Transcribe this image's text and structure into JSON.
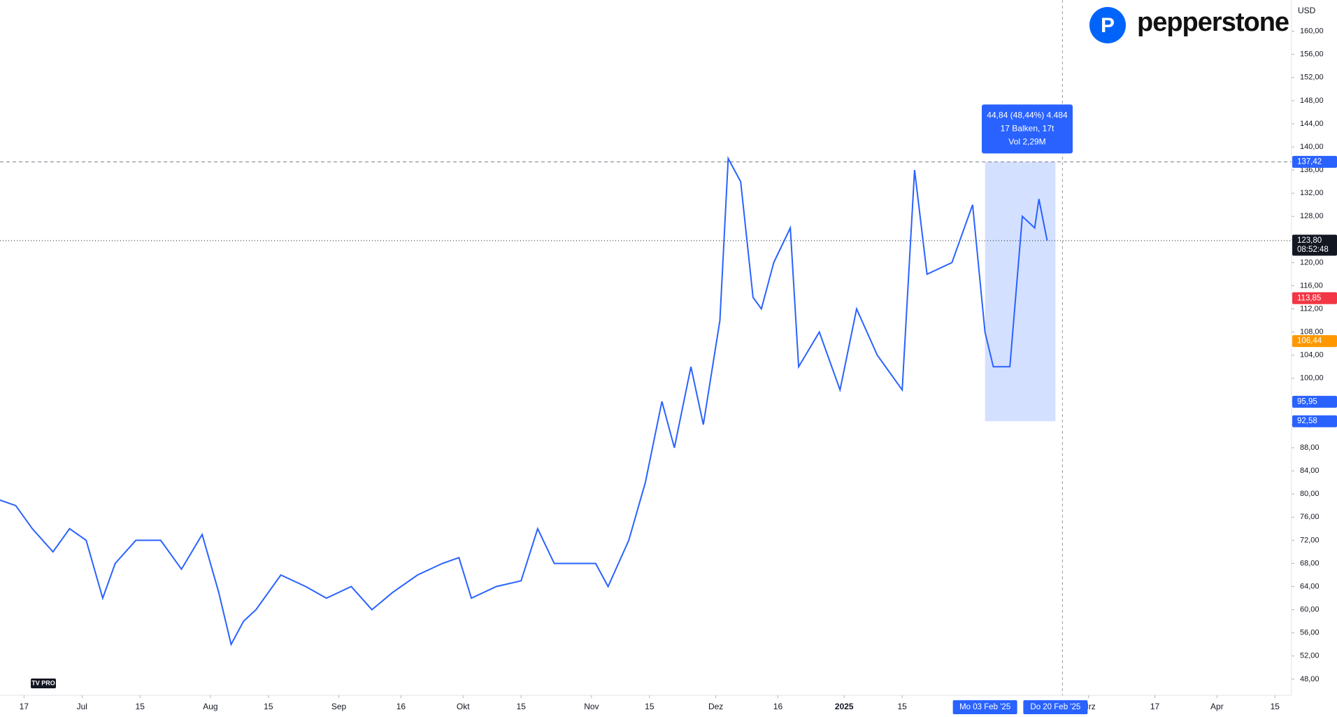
{
  "brand": "pepperstone",
  "logo": "TV PRO",
  "chart_data": {
    "type": "line",
    "currency": "USD",
    "color": "#2962ff",
    "x": [
      -6,
      -2,
      2,
      7,
      11,
      15,
      19,
      22,
      27,
      33,
      38,
      43,
      47,
      50,
      53,
      56,
      62,
      68,
      73,
      79,
      84,
      89,
      95,
      101,
      105,
      108,
      114,
      120,
      124,
      128,
      134,
      138,
      141,
      146,
      150,
      154,
      157,
      161,
      164,
      168,
      170,
      173,
      176,
      178,
      181,
      185,
      187,
      192,
      197,
      201,
      206,
      212,
      215,
      218,
      224,
      229,
      232,
      234,
      238,
      241,
      244,
      245,
      247
    ],
    "values": [
      79,
      78,
      74,
      70,
      74,
      72,
      62,
      68,
      72,
      72,
      67,
      73,
      63,
      54,
      58,
      60,
      66,
      64,
      62,
      64,
      60,
      63,
      66,
      68,
      69,
      62,
      64,
      65,
      74,
      68,
      68,
      68,
      64,
      72,
      82,
      96,
      88,
      102,
      92,
      110,
      138,
      134,
      114,
      112,
      120,
      126,
      102,
      108,
      98,
      112,
      104,
      98,
      136,
      118,
      120,
      130,
      108,
      102,
      102,
      128,
      126,
      131,
      123.8
    ],
    "xlim": [
      -5.8,
      306
    ],
    "ylim": [
      45.2,
      165.4
    ],
    "xticks": [
      {
        "value": 0,
        "label": "17"
      },
      {
        "value": 14,
        "label": "Jul"
      },
      {
        "value": 28,
        "label": "15"
      },
      {
        "value": 45,
        "label": "Aug"
      },
      {
        "value": 59,
        "label": "15"
      },
      {
        "value": 76,
        "label": "Sep"
      },
      {
        "value": 91,
        "label": "16"
      },
      {
        "value": 106,
        "label": "Okt"
      },
      {
        "value": 120,
        "label": "15"
      },
      {
        "value": 137,
        "label": "Nov"
      },
      {
        "value": 151,
        "label": "15"
      },
      {
        "value": 167,
        "label": "Dez"
      },
      {
        "value": 182,
        "label": "16"
      },
      {
        "value": 198,
        "label": "2025"
      },
      {
        "value": 212,
        "label": "15"
      },
      {
        "value": 257,
        "label": "Mrz"
      },
      {
        "value": 273,
        "label": "17"
      },
      {
        "value": 288,
        "label": "Apr"
      },
      {
        "value": 302,
        "label": "15"
      }
    ],
    "yticks": [
      {
        "value": 48,
        "label": "48,00"
      },
      {
        "value": 52,
        "label": "52,00"
      },
      {
        "value": 56,
        "label": "56,00"
      },
      {
        "value": 60,
        "label": "60,00"
      },
      {
        "value": 64,
        "label": "64,00"
      },
      {
        "value": 68,
        "label": "68,00"
      },
      {
        "value": 72,
        "label": "72,00"
      },
      {
        "value": 76,
        "label": "76,00"
      },
      {
        "value": 80,
        "label": "80,00"
      },
      {
        "value": 84,
        "label": "84,00"
      },
      {
        "value": 88,
        "label": "88,00"
      },
      {
        "value": 92,
        "label": "92,00"
      },
      {
        "value": 96,
        "label": "96,00"
      },
      {
        "value": 100,
        "label": "100,00"
      },
      {
        "value": 104,
        "label": "104,00"
      },
      {
        "value": 108,
        "label": "108,00"
      },
      {
        "value": 112,
        "label": "112,00"
      },
      {
        "value": 116,
        "label": "116,00"
      },
      {
        "value": 120,
        "label": "120,00"
      },
      {
        "value": 124,
        "label": "124,00"
      },
      {
        "value": 128,
        "label": "128,00"
      },
      {
        "value": 132,
        "label": "132,00"
      },
      {
        "value": 136,
        "label": "136,00"
      },
      {
        "value": 140,
        "label": "140,00"
      },
      {
        "value": 144,
        "label": "144,00"
      },
      {
        "value": 148,
        "label": "148,00"
      },
      {
        "value": 152,
        "label": "152,00"
      },
      {
        "value": 156,
        "label": "156,00"
      },
      {
        "value": 160,
        "label": "160,00"
      }
    ],
    "price_labels": [
      {
        "value": 137.42,
        "label": "137,42",
        "color": "#2962ff"
      },
      {
        "value": 123.8,
        "label": "123,80",
        "color": "#131722",
        "sublabel": "08:52:48"
      },
      {
        "value": 113.85,
        "label": "113,85",
        "color": "#f23645"
      },
      {
        "value": 106.44,
        "label": "106,44",
        "color": "#ff9800"
      },
      {
        "value": 95.95,
        "label": "95,95",
        "color": "#2962ff"
      },
      {
        "value": 92.58,
        "label": "92,58",
        "color": "#2962ff"
      }
    ],
    "date_labels": [
      {
        "value": 232,
        "label": "Mo 03 Feb '25"
      },
      {
        "value": 249,
        "label": "Do 20 Feb '25"
      }
    ],
    "measure_lines": [
      "44,84 (48,44%) 4.484",
      "17 Balken, 17t",
      "Vol 2,29M"
    ]
  }
}
